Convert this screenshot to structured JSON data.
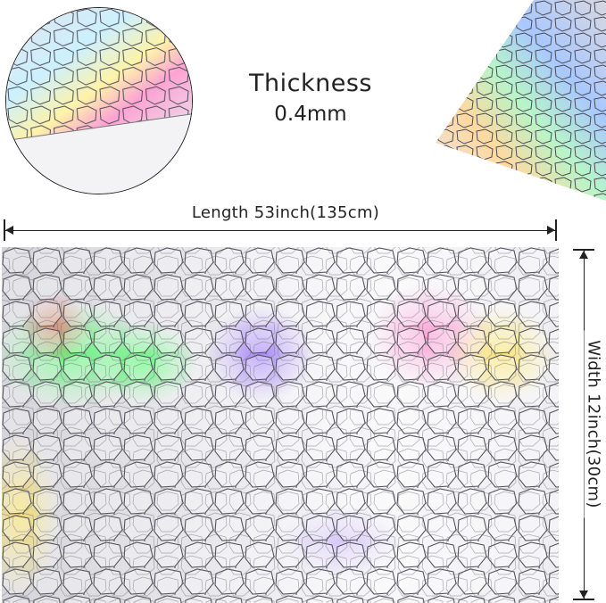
{
  "thickness": {
    "label": "Thickness",
    "value": "0.4mm"
  },
  "dimensions": {
    "length_label": "Length 53inch(135cm)",
    "width_label": "Width 12inch(30cm)"
  },
  "colors": {
    "line": "#222222",
    "cell_fill": "#e9e9ee",
    "cell_edge": "#55555c",
    "holo_green": "#3bff5a",
    "holo_violet": "#8a5cff",
    "holo_pink": "#ff7fc8",
    "holo_yellow": "#ffe14a"
  }
}
